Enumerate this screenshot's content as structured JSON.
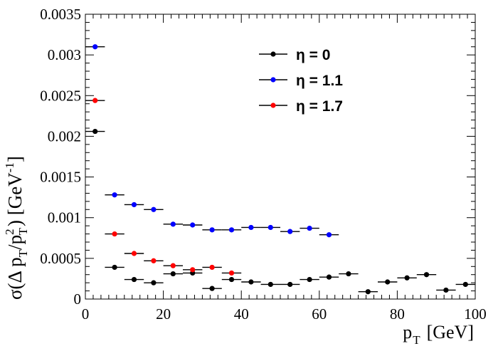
{
  "chart_data": {
    "type": "scatter",
    "title": "",
    "xlabel": "p_T [GeV]",
    "ylabel": "σ(Δ p_T/p_T^2) [GeV^-1]",
    "xlim": [
      0,
      100
    ],
    "ylim": [
      0,
      0.0035
    ],
    "x_ticks": [
      "0",
      "20",
      "40",
      "60",
      "80",
      "100"
    ],
    "y_ticks": [
      "0",
      "0.0005",
      "0.001",
      "0.0015",
      "0.002",
      "0.0025",
      "0.003",
      "0.0035"
    ],
    "x_bin_width": 5,
    "legend_position": "top-right",
    "series": [
      {
        "name": "η = 0",
        "color": "#000000",
        "x": [
          2.5,
          7.5,
          12.5,
          17.5,
          22.5,
          27.5,
          32.5,
          37.5,
          42.5,
          47.5,
          52.5,
          57.5,
          62.5,
          67.5,
          72.5,
          77.5,
          82.5,
          87.5,
          92.5,
          97.5
        ],
        "values": [
          0.00206,
          0.00039,
          0.00024,
          0.0002,
          0.00031,
          0.00032,
          0.00013,
          0.00024,
          0.00021,
          0.00018,
          0.00018,
          0.00024,
          0.00027,
          0.00031,
          9e-05,
          0.00021,
          0.00026,
          0.0003,
          0.00011,
          0.00018
        ]
      },
      {
        "name": "η = 1.1",
        "color": "#0000ff",
        "x": [
          2.5,
          7.5,
          12.5,
          17.5,
          22.5,
          27.5,
          32.5,
          37.5,
          42.5,
          47.5,
          52.5,
          57.5,
          62.5
        ],
        "values": [
          0.0031,
          0.00128,
          0.00116,
          0.0011,
          0.00092,
          0.00091,
          0.00085,
          0.00085,
          0.00088,
          0.00088,
          0.00083,
          0.00087,
          0.00079
        ]
      },
      {
        "name": "η = 1.7",
        "color": "#ff0000",
        "x": [
          2.5,
          7.5,
          12.5,
          17.5,
          22.5,
          27.5,
          32.5,
          37.5
        ],
        "values": [
          0.00244,
          0.0008,
          0.00056,
          0.00047,
          0.00041,
          0.00036,
          0.00039,
          0.00032
        ]
      }
    ]
  }
}
